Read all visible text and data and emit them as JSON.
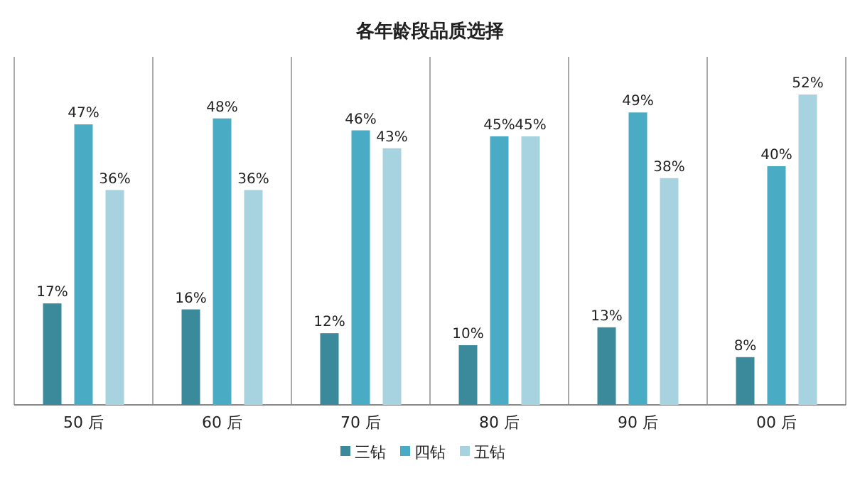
{
  "chart_data": {
    "type": "bar",
    "title": "各年龄段品质选择",
    "categories": [
      "50 后",
      "60 后",
      "70 后",
      "80 后",
      "90 后",
      "00 后"
    ],
    "series": [
      {
        "name": "三钻",
        "color": "#3b8a9c",
        "values": [
          17,
          16,
          12,
          10,
          13,
          8
        ],
        "value_labels": [
          "17%",
          "16%",
          "12%",
          "10%",
          "13%",
          "8%"
        ]
      },
      {
        "name": "四钻",
        "color": "#4aabc5",
        "values": [
          47,
          48,
          46,
          45,
          49,
          40
        ],
        "value_labels": [
          "47%",
          "48%",
          "46%",
          "45%",
          "49%",
          "40%"
        ]
      },
      {
        "name": "五钻",
        "color": "#a7d3e0",
        "values": [
          36,
          36,
          43,
          45,
          38,
          52
        ],
        "value_labels": [
          "36%",
          "36%",
          "43%",
          "45%",
          "38%",
          "52%"
        ]
      }
    ],
    "grid": "x",
    "legend": "bottom"
  }
}
